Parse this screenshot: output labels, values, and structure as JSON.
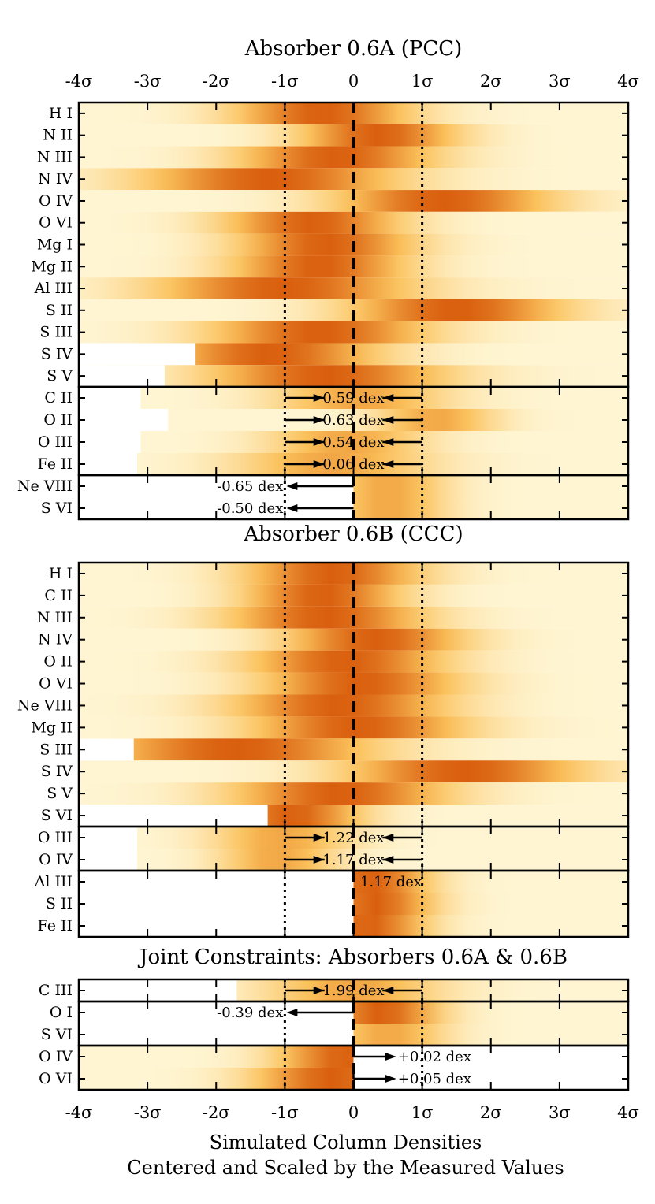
{
  "chart_data": {
    "type": "heatmap",
    "x_range": [
      -4,
      4
    ],
    "x_unit": "σ",
    "xlabel": "Simulated Column Densities",
    "xlabel_line2": "Centered and Scaled by the Measured Values",
    "x_ticks": [
      {
        "value": -4,
        "label": "-4σ"
      },
      {
        "value": -3,
        "label": "-3σ"
      },
      {
        "value": -2,
        "label": "-2σ"
      },
      {
        "value": -1,
        "label": "-1σ"
      },
      {
        "value": 0,
        "label": "0"
      },
      {
        "value": 1,
        "label": "1σ"
      },
      {
        "value": 2,
        "label": "2σ"
      },
      {
        "value": 3,
        "label": "3σ"
      },
      {
        "value": 4,
        "label": "4σ"
      }
    ],
    "reference_lines": {
      "dashed": [
        0
      ],
      "dotted": [
        -1,
        1
      ]
    },
    "colors": {
      "low": "#fffbe0",
      "mid": "#fbc15a",
      "high": "#d95f0e",
      "background": "#ffffff"
    },
    "sections": [
      {
        "title": "Absorber 0.6A (PCC)",
        "show_top_ticks": true,
        "groups": [
          {
            "rows": [
              {
                "ion": "H I",
                "peak": -0.45,
                "width": 0.9
              },
              {
                "ion": "N II",
                "peak": 0.35,
                "width": 0.8
              },
              {
                "ion": "N III",
                "peak": -0.25,
                "width": 1.0
              },
              {
                "ion": "N IV",
                "peak": -1.2,
                "width": 1.3
              },
              {
                "ion": "O IV",
                "peak": 1.3,
                "width": 1.1
              },
              {
                "ion": "O VI",
                "peak": -0.6,
                "width": 0.9
              },
              {
                "ion": "Mg I",
                "peak": -0.4,
                "width": 0.9
              },
              {
                "ion": "Mg II",
                "peak": -0.5,
                "width": 0.9
              },
              {
                "ion": "Al III",
                "peak": -1.0,
                "width": 1.3
              },
              {
                "ion": "S II",
                "peak": 1.5,
                "width": 1.1
              },
              {
                "ion": "S III",
                "peak": -0.5,
                "width": 1.1
              },
              {
                "ion": "S IV",
                "peak": -1.2,
                "width": 1.1,
                "start": -2.3
              },
              {
                "ion": "S V",
                "peak": -0.4,
                "width": 1.2,
                "start": -2.75
              }
            ]
          },
          {
            "arrow": {
              "from": -1,
              "to": 1,
              "text": "0.59 dex",
              "dir": "both"
            },
            "rows": [
              {
                "ion": "C II",
                "peak": 0.1,
                "width": 0.9,
                "start": -3.1,
                "faint": true
              },
              {
                "ion": "O II",
                "peak": 1.2,
                "width": 0.6,
                "start": -2.7,
                "faint": true
              },
              {
                "ion": "O III",
                "peak": -0.1,
                "width": 0.8,
                "start": -3.1,
                "faint": true
              },
              {
                "ion": "Fe II",
                "peak": -0.3,
                "width": 1.0,
                "start": -3.15,
                "faint": true
              }
            ]
          },
          {
            "arrow": {
              "from": 0,
              "to": -1,
              "text": "-0.65 dex",
              "dir": "left"
            },
            "rows": [
              {
                "ion": "Ne VIII",
                "peak": 0.5,
                "width": 0.6,
                "start": 0,
                "faint": true
              },
              {
                "ion": "S VI",
                "peak": 0.5,
                "width": 0.6,
                "start": 0,
                "faint": true
              }
            ]
          }
        ]
      },
      {
        "title": "Absorber 0.6B (CCC)",
        "show_top_ticks": false,
        "groups": [
          {
            "rows": [
              {
                "ion": "H I",
                "peak": -0.3,
                "width": 0.9
              },
              {
                "ion": "C II",
                "peak": -0.45,
                "width": 0.8
              },
              {
                "ion": "N III",
                "peak": -0.4,
                "width": 1.0
              },
              {
                "ion": "N IV",
                "peak": 0.3,
                "width": 0.9
              },
              {
                "ion": "O II",
                "peak": -0.1,
                "width": 1.0
              },
              {
                "ion": "O VI",
                "peak": 0.1,
                "width": 1.0
              },
              {
                "ion": "Ne VIII",
                "peak": -0.2,
                "width": 1.1
              },
              {
                "ion": "Mg II",
                "peak": 0.05,
                "width": 1.1
              },
              {
                "ion": "S III",
                "peak": -1.7,
                "width": 1.4,
                "start": -3.2
              },
              {
                "ion": "S IV",
                "peak": 1.6,
                "width": 1.2
              },
              {
                "ion": "S V",
                "peak": -0.2,
                "width": 1.1
              },
              {
                "ion": "S VI",
                "peak": -0.9,
                "width": 0.7,
                "start": -1.25
              }
            ]
          },
          {
            "arrow": {
              "from": -1,
              "to": 1,
              "text": "1.22 dex",
              "dir": "both"
            },
            "rows": [
              {
                "ion": "O III",
                "peak": -1.05,
                "width": 0.7,
                "start": -3.15,
                "faint": true
              },
              {
                "ion": "O IV",
                "peak": -1.1,
                "width": 0.6,
                "start": -3.15,
                "faint": true
              }
            ]
          },
          {
            "arrow": {
              "from": 0,
              "to": 1,
              "text": "1.17 dex",
              "dir": "none"
            },
            "rows": [
              {
                "ion": "Al III",
                "peak": 0.25,
                "width": 0.6,
                "start": 0
              },
              {
                "ion": "S II",
                "peak": 0.3,
                "width": 0.6,
                "start": 0
              },
              {
                "ion": "Fe II",
                "peak": 0.2,
                "width": 0.6,
                "start": 0
              }
            ]
          }
        ]
      },
      {
        "title": "Joint Constraints: Absorbers 0.6A & 0.6B",
        "show_top_ticks": false,
        "groups": [
          {
            "arrow": {
              "from": -1,
              "to": 1,
              "text": "1.99 dex",
              "dir": "both"
            },
            "rows": [
              {
                "ion": "C III",
                "peak": 0.0,
                "width": 0.9,
                "start": -1.7,
                "faint": true
              }
            ]
          },
          {
            "arrow": {
              "from": 0,
              "to": -1,
              "text": "-0.39 dex",
              "dir": "left"
            },
            "rows": [
              {
                "ion": "O I",
                "peak": 0.4,
                "width": 0.6,
                "start": 0
              },
              {
                "ion": "S VI",
                "peak": 0.5,
                "width": 0.6,
                "start": 0,
                "faint": true
              }
            ]
          },
          {
            "arrow": {
              "from": 0,
              "to": 0.6,
              "text": "+0.02 dex",
              "dir": "right"
            },
            "extra_arrow": {
              "from": 0,
              "to": 0.6,
              "text": "+0.05 dex"
            },
            "rows": [
              {
                "ion": "O IV",
                "peak": -0.1,
                "width": 0.7,
                "end": 0
              },
              {
                "ion": "O VI",
                "peak": -0.3,
                "width": 0.8,
                "end": 0
              }
            ]
          }
        ]
      }
    ]
  }
}
